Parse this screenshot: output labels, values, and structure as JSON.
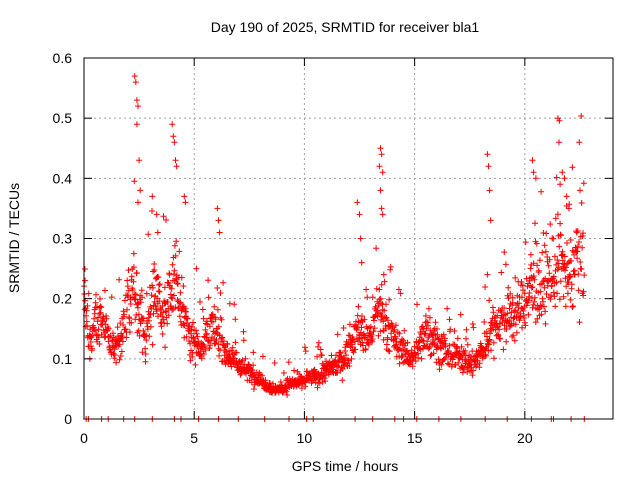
{
  "chart_data": {
    "type": "scatter",
    "title": "Day 190 of 2025, SRMTID for receiver bla1",
    "xlabel": "GPS time / hours",
    "ylabel": "SRMTID / TECUs",
    "xlim": [
      0,
      24
    ],
    "ylim": [
      0,
      0.6
    ],
    "grid": true,
    "marker": "+",
    "color": "#ff0000",
    "x_ticks": [
      0,
      5,
      10,
      15,
      20
    ],
    "y_ticks": [
      0,
      0.1,
      0.2,
      0.3,
      0.4,
      0.5,
      0.6
    ],
    "x_tick_labels": [
      "0",
      "5",
      "10",
      "15",
      "20"
    ],
    "y_tick_labels": [
      "0",
      "0.1",
      "0.2",
      "0.3",
      "0.4",
      "0.5",
      "0.6"
    ],
    "series": [
      {
        "name": "SRMTID",
        "note": "dense scatter of several thousand samples; values generated from the depicted trend",
        "trend": [
          [
            0.0,
            0.21
          ],
          [
            0.2,
            0.12
          ],
          [
            0.5,
            0.16
          ],
          [
            1.0,
            0.17
          ],
          [
            1.2,
            0.12
          ],
          [
            1.5,
            0.12
          ],
          [
            1.8,
            0.16
          ],
          [
            2.0,
            0.19
          ],
          [
            2.3,
            0.23
          ],
          [
            2.6,
            0.16
          ],
          [
            2.8,
            0.12
          ],
          [
            3.0,
            0.18
          ],
          [
            3.3,
            0.22
          ],
          [
            3.5,
            0.17
          ],
          [
            3.8,
            0.19
          ],
          [
            4.0,
            0.21
          ],
          [
            4.2,
            0.23
          ],
          [
            4.5,
            0.18
          ],
          [
            4.8,
            0.14
          ],
          [
            5.0,
            0.13
          ],
          [
            5.3,
            0.12
          ],
          [
            5.6,
            0.14
          ],
          [
            5.9,
            0.15
          ],
          [
            6.2,
            0.13
          ],
          [
            6.5,
            0.11
          ],
          [
            6.8,
            0.1
          ],
          [
            7.0,
            0.09
          ],
          [
            7.4,
            0.08
          ],
          [
            7.8,
            0.07
          ],
          [
            8.2,
            0.06
          ],
          [
            8.6,
            0.05
          ],
          [
            9.0,
            0.05
          ],
          [
            9.4,
            0.06
          ],
          [
            9.8,
            0.06
          ],
          [
            10.2,
            0.07
          ],
          [
            10.6,
            0.07
          ],
          [
            11.0,
            0.08
          ],
          [
            11.4,
            0.09
          ],
          [
            11.8,
            0.1
          ],
          [
            12.2,
            0.13
          ],
          [
            12.5,
            0.15
          ],
          [
            12.8,
            0.13
          ],
          [
            13.1,
            0.15
          ],
          [
            13.4,
            0.18
          ],
          [
            13.7,
            0.15
          ],
          [
            14.0,
            0.14
          ],
          [
            14.3,
            0.12
          ],
          [
            14.6,
            0.11
          ],
          [
            14.9,
            0.1
          ],
          [
            15.2,
            0.12
          ],
          [
            15.5,
            0.15
          ],
          [
            15.8,
            0.14
          ],
          [
            16.1,
            0.12
          ],
          [
            16.4,
            0.11
          ],
          [
            16.7,
            0.1
          ],
          [
            17.0,
            0.11
          ],
          [
            17.3,
            0.1
          ],
          [
            17.6,
            0.09
          ],
          [
            17.9,
            0.1
          ],
          [
            18.2,
            0.12
          ],
          [
            18.5,
            0.15
          ],
          [
            18.8,
            0.16
          ],
          [
            19.1,
            0.17
          ],
          [
            19.4,
            0.17
          ],
          [
            19.7,
            0.18
          ],
          [
            20.0,
            0.2
          ],
          [
            20.3,
            0.22
          ],
          [
            20.6,
            0.22
          ],
          [
            20.9,
            0.22
          ],
          [
            21.2,
            0.23
          ],
          [
            21.5,
            0.26
          ],
          [
            21.8,
            0.25
          ],
          [
            22.0,
            0.23
          ],
          [
            22.2,
            0.26
          ],
          [
            22.4,
            0.28
          ],
          [
            22.7,
            0.29
          ]
        ],
        "spikes": [
          [
            2.3,
            0.57
          ],
          [
            2.35,
            0.56
          ],
          [
            2.4,
            0.53
          ],
          [
            2.45,
            0.52
          ],
          [
            2.4,
            0.49
          ],
          [
            2.5,
            0.43
          ],
          [
            2.55,
            0.38
          ],
          [
            2.45,
            0.36
          ],
          [
            3.1,
            0.37
          ],
          [
            3.3,
            0.34
          ],
          [
            3.35,
            0.31
          ],
          [
            4.0,
            0.49
          ],
          [
            4.05,
            0.47
          ],
          [
            4.1,
            0.46
          ],
          [
            4.15,
            0.43
          ],
          [
            4.2,
            0.42
          ],
          [
            4.55,
            0.37
          ],
          [
            4.6,
            0.36
          ],
          [
            6.05,
            0.35
          ],
          [
            6.1,
            0.33
          ],
          [
            6.15,
            0.31
          ],
          [
            5.1,
            0.25
          ],
          [
            12.4,
            0.36
          ],
          [
            12.5,
            0.34
          ],
          [
            12.55,
            0.3
          ],
          [
            12.6,
            0.26
          ],
          [
            13.45,
            0.45
          ],
          [
            13.5,
            0.44
          ],
          [
            13.4,
            0.42
          ],
          [
            13.55,
            0.41
          ],
          [
            13.45,
            0.38
          ],
          [
            13.5,
            0.35
          ],
          [
            13.55,
            0.34
          ],
          [
            13.6,
            0.24
          ],
          [
            18.3,
            0.44
          ],
          [
            18.35,
            0.42
          ],
          [
            18.4,
            0.38
          ],
          [
            18.45,
            0.33
          ],
          [
            18.3,
            0.24
          ],
          [
            20.35,
            0.43
          ],
          [
            20.4,
            0.41
          ],
          [
            20.5,
            0.4
          ],
          [
            21.5,
            0.5
          ],
          [
            21.55,
            0.46
          ],
          [
            21.7,
            0.41
          ],
          [
            21.8,
            0.4
          ],
          [
            21.9,
            0.37
          ],
          [
            22.0,
            0.35
          ],
          [
            21.6,
            0.39
          ],
          [
            0.05,
            0.23
          ]
        ],
        "zero_points": [
          0.1,
          0.2,
          0.8,
          1.1,
          1.8,
          2.3,
          3.1,
          4.1,
          4.4,
          5.2,
          6.1,
          7.0,
          8.2,
          9.3,
          10.1,
          10.4,
          12.3,
          13.1,
          14.1,
          14.5,
          15.1,
          16.1,
          17.1,
          18.2,
          19.2,
          20.3,
          21.2,
          21.3,
          22.1,
          22.7
        ]
      }
    ]
  }
}
